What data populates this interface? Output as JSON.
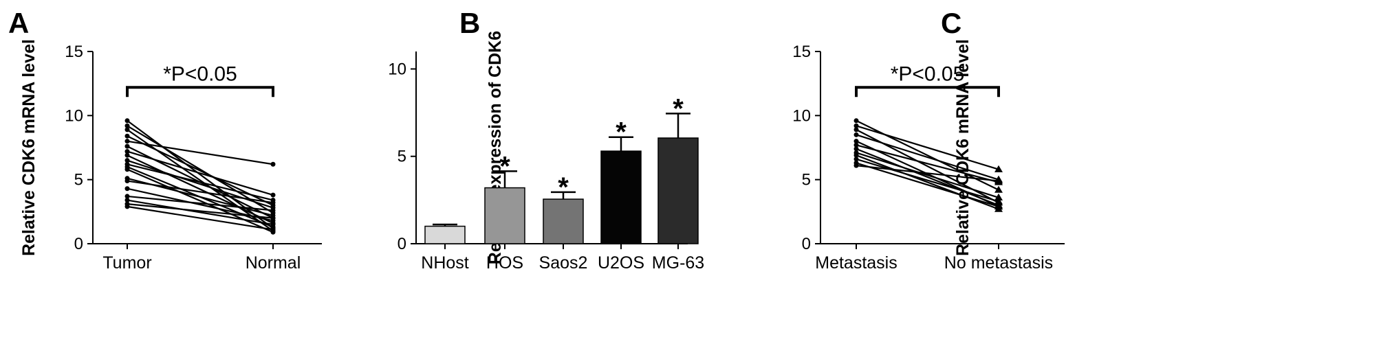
{
  "chart_data": [
    {
      "panel": "A",
      "type": "line",
      "ylabel": "Relative CDK6 mRNA level",
      "xlabel": "",
      "ylim": [
        0,
        15
      ],
      "yticks": [
        0,
        5,
        10,
        15
      ],
      "categories": [
        "Tumor",
        "Normal"
      ],
      "annotation": "*P<0.05",
      "marker": "circle",
      "pairs": [
        [
          9.6,
          1.2
        ],
        [
          9.2,
          2.4
        ],
        [
          8.9,
          1.0
        ],
        [
          8.4,
          3.0
        ],
        [
          8.0,
          6.2
        ],
        [
          7.6,
          2.0
        ],
        [
          7.2,
          3.8
        ],
        [
          6.9,
          1.6
        ],
        [
          6.5,
          2.8
        ],
        [
          6.2,
          3.4
        ],
        [
          6.0,
          1.3
        ],
        [
          5.8,
          0.9
        ],
        [
          5.1,
          2.2
        ],
        [
          4.9,
          3.2
        ],
        [
          4.3,
          1.8
        ],
        [
          3.7,
          2.6
        ],
        [
          3.4,
          1.5
        ],
        [
          3.1,
          2.0
        ],
        [
          2.9,
          1.1
        ]
      ]
    },
    {
      "panel": "B",
      "type": "bar",
      "ylabel": "Relative expression of CDK6",
      "xlabel": "",
      "ylim": [
        0,
        11
      ],
      "yticks": [
        0,
        5,
        10
      ],
      "categories": [
        "NHost",
        "HOS",
        "Saos2",
        "U2OS",
        "MG-63"
      ],
      "values": [
        1.0,
        3.2,
        2.55,
        5.3,
        6.05
      ],
      "errors": [
        0.1,
        0.95,
        0.4,
        0.8,
        1.4
      ],
      "significance": [
        "",
        "*",
        "*",
        "*",
        "*"
      ],
      "colors": [
        "#d9d9d9",
        "#969696",
        "#747474",
        "#050505",
        "#2b2b2b"
      ]
    },
    {
      "panel": "C",
      "type": "line",
      "ylabel": "Relative CDK6 mRNA level",
      "xlabel": "",
      "ylim": [
        0,
        15
      ],
      "yticks": [
        0,
        5,
        10,
        15
      ],
      "categories": [
        "Metastasis",
        "No metastasis"
      ],
      "annotation": "*P<0.05",
      "marker": "circle-triangle",
      "pairs": [
        [
          9.6,
          4.2
        ],
        [
          9.2,
          5.8
        ],
        [
          8.9,
          3.2
        ],
        [
          8.5,
          5.0
        ],
        [
          8.0,
          2.9
        ],
        [
          7.7,
          4.8
        ],
        [
          7.4,
          3.0
        ],
        [
          7.1,
          3.6
        ],
        [
          6.9,
          2.7
        ],
        [
          6.6,
          3.3
        ],
        [
          6.3,
          2.9
        ],
        [
          6.1,
          4.9
        ]
      ]
    }
  ]
}
